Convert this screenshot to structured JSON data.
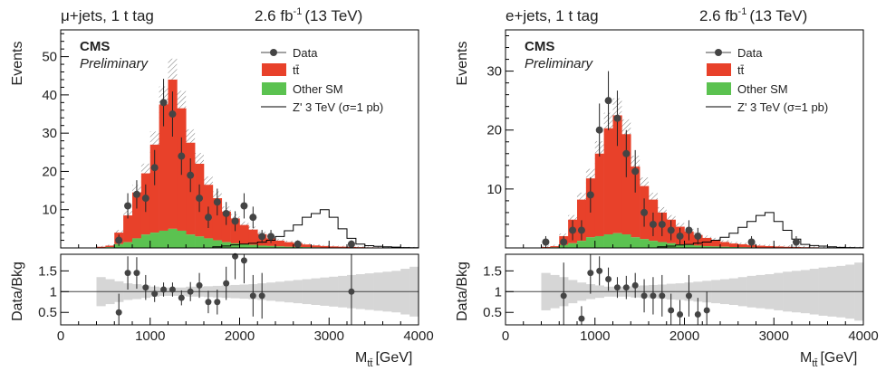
{
  "chart_data": [
    {
      "type": "bar",
      "channel": "μ+jets, 1 t tag",
      "lumi": "2.6 fb",
      "lumi_exp": "-1",
      "energy": "(13 TeV)",
      "cms": "CMS",
      "preliminary": "Preliminary",
      "ylabel": "Events",
      "ratio_ylabel": "Data/Bkg",
      "xlabel": "M",
      "xlabel_sub": "tt̄",
      "xlabel_unit": "[GeV]",
      "xlim": [
        0,
        4000
      ],
      "ylim": [
        0,
        57
      ],
      "ratio_ylim": [
        0.2,
        1.9
      ],
      "xticks": [
        0,
        1000,
        2000,
        3000,
        4000
      ],
      "yticks": [
        10,
        20,
        30,
        40,
        50
      ],
      "ratio_yticks": [
        0.5,
        1,
        1.5
      ],
      "colors": {
        "ttbar": "#e8412a",
        "other": "#5bc250",
        "unc": "#d6d6d6",
        "data": "#444444"
      },
      "legend": [
        "Data",
        "tt̄",
        "Other SM",
        "Z' 3 TeV (σ=1 pb)"
      ],
      "bin_edges": [
        400,
        500,
        600,
        700,
        800,
        900,
        1000,
        1100,
        1200,
        1300,
        1400,
        1500,
        1600,
        1700,
        1800,
        1900,
        2000,
        2100,
        2200,
        2300,
        2400,
        2500,
        2600,
        2700,
        2800,
        2900,
        3000,
        3100,
        3200,
        3300,
        3400,
        3500,
        3600,
        3700,
        3800,
        3900,
        4000
      ],
      "series": [
        {
          "name": "tt̄",
          "values": [
            0.2,
            0.4,
            3,
            7,
            12,
            16,
            23,
            33,
            39,
            32,
            24,
            19,
            14,
            11,
            8,
            6.5,
            5,
            4,
            3,
            2,
            1.5,
            1.2,
            1,
            0.7,
            0.5,
            0.4,
            0.3,
            0.25,
            0.2,
            0.15,
            0.1,
            0.1,
            0.08,
            0.06,
            0.05,
            0.04
          ]
        },
        {
          "name": "Other SM",
          "values": [
            0.1,
            0.2,
            1,
            1.5,
            2.5,
            3.5,
            4,
            4.5,
            5,
            4.5,
            3.5,
            3,
            2.5,
            2,
            1.5,
            1.2,
            1,
            0.8,
            0.6,
            0.5,
            0.4,
            0.3,
            0.25,
            0.2,
            0.15,
            0.1,
            0.1,
            0.08,
            0.06,
            0.05,
            0.04,
            0.03,
            0.03,
            0.02,
            0.02,
            0.01
          ]
        },
        {
          "name": "Z' 3 TeV (σ=1 pb)",
          "values": [
            0,
            0,
            0,
            0,
            0,
            0,
            0,
            0,
            0,
            0,
            0,
            0,
            0,
            0.3,
            0.5,
            0.8,
            1,
            1.2,
            1.5,
            2,
            3,
            4.5,
            6,
            8,
            9,
            10,
            8,
            5,
            2.5,
            1,
            0.6,
            0.4,
            0.3,
            0.2,
            0.1,
            0.05
          ]
        }
      ],
      "data_points": [
        {
          "x": 650,
          "y": 2,
          "err": 1.5
        },
        {
          "x": 750,
          "y": 11,
          "err": 3.3
        },
        {
          "x": 850,
          "y": 14,
          "err": 3.7
        },
        {
          "x": 950,
          "y": 13,
          "err": 3.6
        },
        {
          "x": 1050,
          "y": 21,
          "err": 4.6
        },
        {
          "x": 1150,
          "y": 38,
          "err": 6.2
        },
        {
          "x": 1250,
          "y": 35,
          "err": 5.9
        },
        {
          "x": 1350,
          "y": 24,
          "err": 4.9
        },
        {
          "x": 1450,
          "y": 19,
          "err": 4.4
        },
        {
          "x": 1550,
          "y": 13,
          "err": 3.6
        },
        {
          "x": 1650,
          "y": 8,
          "err": 2.8
        },
        {
          "x": 1750,
          "y": 12,
          "err": 3.5
        },
        {
          "x": 1850,
          "y": 9,
          "err": 3
        },
        {
          "x": 1950,
          "y": 7,
          "err": 2.6
        },
        {
          "x": 2050,
          "y": 11,
          "err": 3.3
        },
        {
          "x": 2150,
          "y": 8,
          "err": 2.8
        },
        {
          "x": 2250,
          "y": 3,
          "err": 1.7
        },
        {
          "x": 2350,
          "y": 3,
          "err": 1.7
        },
        {
          "x": 2650,
          "y": 1,
          "err": 1
        },
        {
          "x": 3250,
          "y": 1,
          "err": 1
        }
      ],
      "ratio_points": [
        {
          "x": 650,
          "y": 0.5,
          "err": 0.45
        },
        {
          "x": 750,
          "y": 1.45,
          "err": 0.4
        },
        {
          "x": 850,
          "y": 1.45,
          "err": 0.38
        },
        {
          "x": 950,
          "y": 1.1,
          "err": 0.3
        },
        {
          "x": 1050,
          "y": 0.95,
          "err": 0.2
        },
        {
          "x": 1150,
          "y": 1.05,
          "err": 0.17
        },
        {
          "x": 1250,
          "y": 1.05,
          "err": 0.17
        },
        {
          "x": 1350,
          "y": 0.85,
          "err": 0.18
        },
        {
          "x": 1450,
          "y": 1.0,
          "err": 0.23
        },
        {
          "x": 1550,
          "y": 1.15,
          "err": 0.3
        },
        {
          "x": 1650,
          "y": 0.75,
          "err": 0.27
        },
        {
          "x": 1750,
          "y": 0.75,
          "err": 0.3
        },
        {
          "x": 1850,
          "y": 1.2,
          "err": 0.4
        },
        {
          "x": 1950,
          "y": 1.85,
          "err": 0.55
        },
        {
          "x": 2050,
          "y": 1.75,
          "err": 0.55
        },
        {
          "x": 2150,
          "y": 0.9,
          "err": 0.5
        },
        {
          "x": 2250,
          "y": 0.9,
          "err": 0.55
        },
        {
          "x": 3250,
          "y": 1.0,
          "err": 1.5
        }
      ],
      "ratio_band": [
        0.35,
        0.3,
        0.25,
        0.2,
        0.18,
        0.15,
        0.12,
        0.1,
        0.1,
        0.1,
        0.12,
        0.12,
        0.13,
        0.14,
        0.15,
        0.16,
        0.17,
        0.18,
        0.2,
        0.22,
        0.24,
        0.26,
        0.28,
        0.3,
        0.32,
        0.34,
        0.36,
        0.38,
        0.4,
        0.42,
        0.44,
        0.46,
        0.48,
        0.5,
        0.55,
        0.6
      ]
    },
    {
      "type": "bar",
      "channel": "e+jets, 1 t tag",
      "lumi": "2.6 fb",
      "lumi_exp": "-1",
      "energy": "(13 TeV)",
      "cms": "CMS",
      "preliminary": "Preliminary",
      "ylabel": "Events",
      "ratio_ylabel": "Data/Bkg",
      "xlabel": "M",
      "xlabel_sub": "tt̄",
      "xlabel_unit": "[GeV]",
      "xlim": [
        0,
        4000
      ],
      "ylim": [
        0,
        37
      ],
      "ratio_ylim": [
        0.2,
        1.9
      ],
      "xticks": [
        0,
        1000,
        2000,
        3000,
        4000
      ],
      "yticks": [
        10,
        20,
        30
      ],
      "ratio_yticks": [
        0.5,
        1,
        1.5
      ],
      "colors": {
        "ttbar": "#e8412a",
        "other": "#5bc250",
        "unc": "#d6d6d6",
        "data": "#444444"
      },
      "legend": [
        "Data",
        "tt̄",
        "Other SM",
        "Z' 3 TeV (σ=1 pb)"
      ],
      "bin_edges": [
        400,
        500,
        600,
        700,
        800,
        900,
        1000,
        1100,
        1200,
        1300,
        1400,
        1500,
        1600,
        1700,
        1800,
        1900,
        2000,
        2100,
        2200,
        2300,
        2400,
        2500,
        2600,
        2700,
        2800,
        2900,
        3000,
        3100,
        3200,
        3300,
        3400,
        3500,
        3600,
        3700,
        3800,
        3900,
        4000
      ],
      "series": [
        {
          "name": "tt̄",
          "values": [
            0.1,
            0.2,
            1.5,
            4,
            7,
            10,
            14,
            18,
            20,
            17,
            12,
            9,
            7,
            5,
            4,
            3,
            2.3,
            1.8,
            1.4,
            1.1,
            0.8,
            0.6,
            0.5,
            0.4,
            0.3,
            0.25,
            0.2,
            0.15,
            0.12,
            0.1,
            0.08,
            0.06,
            0.05,
            0.04,
            0.03,
            0.02
          ]
        },
        {
          "name": "Other SM",
          "values": [
            0.05,
            0.1,
            0.5,
            0.8,
            1.2,
            1.8,
            2,
            2.3,
            2.5,
            2.3,
            1.8,
            1.5,
            1.2,
            1,
            0.8,
            0.6,
            0.5,
            0.4,
            0.3,
            0.25,
            0.2,
            0.15,
            0.12,
            0.1,
            0.08,
            0.06,
            0.05,
            0.04,
            0.03,
            0.02,
            0.02,
            0.01,
            0.01,
            0.01,
            0.01,
            0.01
          ]
        },
        {
          "name": "Z' 3 TeV (σ=1 pb)",
          "values": [
            0,
            0,
            0,
            0,
            0,
            0,
            0,
            0,
            0,
            0,
            0,
            0,
            0,
            0.2,
            0.3,
            0.5,
            0.6,
            0.8,
            1,
            1.3,
            1.8,
            2.5,
            3.5,
            4.5,
            5.5,
            6,
            4.5,
            3,
            1.5,
            0.6,
            0.4,
            0.3,
            0.2,
            0.1,
            0.05,
            0.03
          ]
        }
      ],
      "data_points": [
        {
          "x": 450,
          "y": 1,
          "err": 1
        },
        {
          "x": 650,
          "y": 1,
          "err": 1
        },
        {
          "x": 750,
          "y": 3,
          "err": 1.7
        },
        {
          "x": 850,
          "y": 3,
          "err": 1.7
        },
        {
          "x": 950,
          "y": 9,
          "err": 3
        },
        {
          "x": 1050,
          "y": 20,
          "err": 4.5
        },
        {
          "x": 1150,
          "y": 25,
          "err": 5
        },
        {
          "x": 1250,
          "y": 22,
          "err": 4.7
        },
        {
          "x": 1350,
          "y": 16,
          "err": 4
        },
        {
          "x": 1450,
          "y": 13,
          "err": 3.6
        },
        {
          "x": 1550,
          "y": 6,
          "err": 2.4
        },
        {
          "x": 1650,
          "y": 4,
          "err": 2
        },
        {
          "x": 1750,
          "y": 4,
          "err": 2
        },
        {
          "x": 1850,
          "y": 3,
          "err": 1.7
        },
        {
          "x": 1950,
          "y": 2,
          "err": 1.4
        },
        {
          "x": 2050,
          "y": 3,
          "err": 1.7
        },
        {
          "x": 2150,
          "y": 2,
          "err": 1.4
        },
        {
          "x": 2750,
          "y": 1,
          "err": 1
        },
        {
          "x": 3250,
          "y": 1,
          "err": 1
        }
      ],
      "ratio_points": [
        {
          "x": 650,
          "y": 0.9,
          "err": 0.8
        },
        {
          "x": 850,
          "y": 0.35,
          "err": 0.3
        },
        {
          "x": 950,
          "y": 1.45,
          "err": 0.5
        },
        {
          "x": 1050,
          "y": 1.5,
          "err": 0.35
        },
        {
          "x": 1150,
          "y": 1.3,
          "err": 0.28
        },
        {
          "x": 1250,
          "y": 1.1,
          "err": 0.25
        },
        {
          "x": 1350,
          "y": 1.1,
          "err": 0.28
        },
        {
          "x": 1450,
          "y": 1.15,
          "err": 0.3
        },
        {
          "x": 1550,
          "y": 0.9,
          "err": 0.4
        },
        {
          "x": 1650,
          "y": 0.9,
          "err": 0.45
        },
        {
          "x": 1750,
          "y": 0.9,
          "err": 0.5
        },
        {
          "x": 1850,
          "y": 0.55,
          "err": 0.4
        },
        {
          "x": 1950,
          "y": 0.45,
          "err": 0.35
        },
        {
          "x": 2050,
          "y": 0.9,
          "err": 0.5
        },
        {
          "x": 2150,
          "y": 0.45,
          "err": 0.4
        },
        {
          "x": 2250,
          "y": 0.55,
          "err": 0.45
        }
      ],
      "ratio_band": [
        0.45,
        0.4,
        0.35,
        0.28,
        0.22,
        0.18,
        0.15,
        0.12,
        0.12,
        0.12,
        0.14,
        0.15,
        0.16,
        0.17,
        0.19,
        0.2,
        0.22,
        0.24,
        0.26,
        0.28,
        0.3,
        0.32,
        0.35,
        0.38,
        0.4,
        0.42,
        0.45,
        0.48,
        0.5,
        0.52,
        0.55,
        0.58,
        0.6,
        0.62,
        0.65,
        0.7
      ]
    }
  ]
}
